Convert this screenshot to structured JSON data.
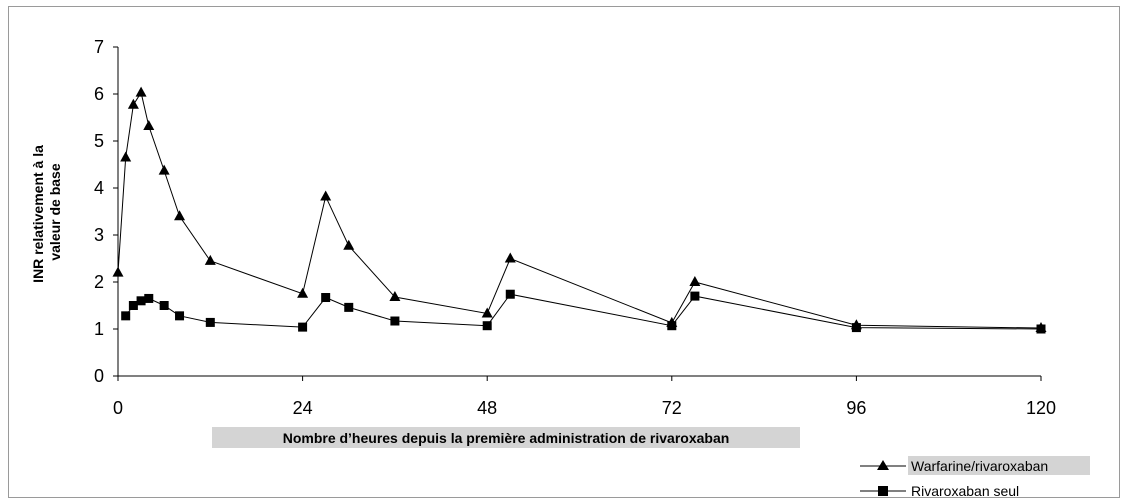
{
  "chart_data": {
    "type": "line",
    "xlabel": "Nombre d’heures depuis la première administration de rivaroxaban",
    "ylabel": "INR relativement à la valeur de base",
    "ylabel_lines": [
      "INR relativement à la",
      "valeur de base"
    ],
    "xlim": [
      0,
      120
    ],
    "ylim": [
      0,
      7
    ],
    "x_ticks": [
      0,
      24,
      48,
      72,
      96,
      120
    ],
    "y_ticks": [
      0,
      1,
      2,
      3,
      4,
      5,
      6,
      7
    ],
    "grid": false,
    "legend_position": "bottom-right",
    "series": [
      {
        "name": "Warfarine/rivaroxaban",
        "marker": "triangle",
        "color": "#000000",
        "x": [
          0,
          1,
          2,
          3,
          4,
          6,
          8,
          12,
          24,
          27,
          30,
          36,
          48,
          51,
          72,
          75,
          96,
          120
        ],
        "y": [
          2.2,
          4.65,
          5.77,
          6.03,
          5.32,
          4.37,
          3.4,
          2.45,
          1.75,
          3.82,
          2.77,
          1.68,
          1.33,
          2.5,
          1.13,
          2.0,
          1.08,
          1.02
        ]
      },
      {
        "name": "Rivaroxaban seul",
        "marker": "square",
        "color": "#000000",
        "x": [
          1,
          2,
          3,
          4,
          6,
          8,
          12,
          24,
          27,
          30,
          36,
          48,
          51,
          72,
          75,
          96,
          120
        ],
        "y": [
          1.28,
          1.5,
          1.6,
          1.65,
          1.5,
          1.28,
          1.14,
          1.04,
          1.67,
          1.46,
          1.17,
          1.07,
          1.74,
          1.07,
          1.7,
          1.03,
          1.0
        ]
      }
    ]
  }
}
